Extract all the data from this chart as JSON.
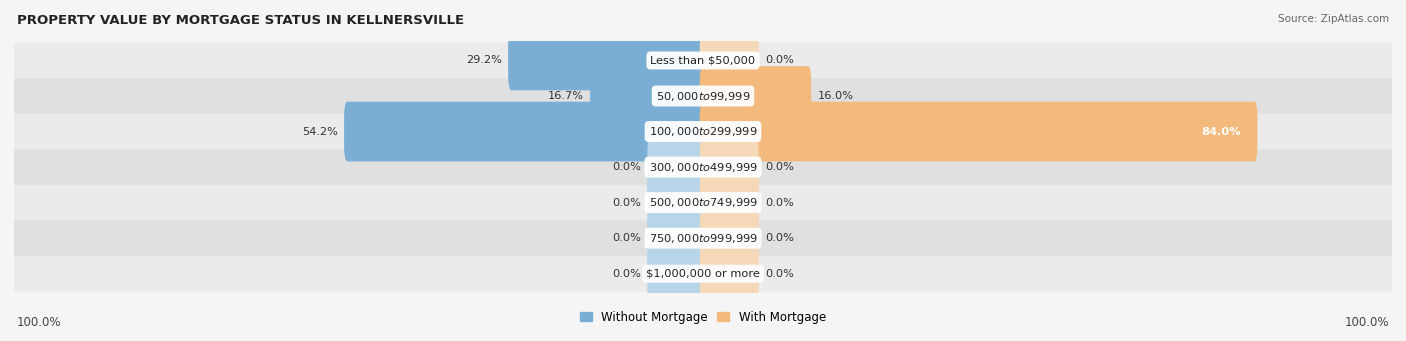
{
  "title": "PROPERTY VALUE BY MORTGAGE STATUS IN KELLNERSVILLE",
  "source": "Source: ZipAtlas.com",
  "categories": [
    "Less than $50,000",
    "$50,000 to $99,999",
    "$100,000 to $299,999",
    "$300,000 to $499,999",
    "$500,000 to $749,999",
    "$750,000 to $999,999",
    "$1,000,000 or more"
  ],
  "without_mortgage": [
    29.2,
    16.7,
    54.2,
    0.0,
    0.0,
    0.0,
    0.0
  ],
  "with_mortgage": [
    0.0,
    16.0,
    84.0,
    0.0,
    0.0,
    0.0,
    0.0
  ],
  "color_without": "#7aaed4",
  "color_with": "#f4b97c",
  "color_without_zero": "#b8d4e8",
  "color_with_zero": "#f5d8b8",
  "row_bg_odd": "#ebebeb",
  "row_bg_even": "#e0e0e0",
  "fig_bg": "#f5f5f5",
  "label_fontsize": 8.2,
  "title_fontsize": 9.5,
  "legend_fontsize": 8.5,
  "footer_fontsize": 8.5,
  "stub_size": 8.0,
  "max_val": 100.0
}
